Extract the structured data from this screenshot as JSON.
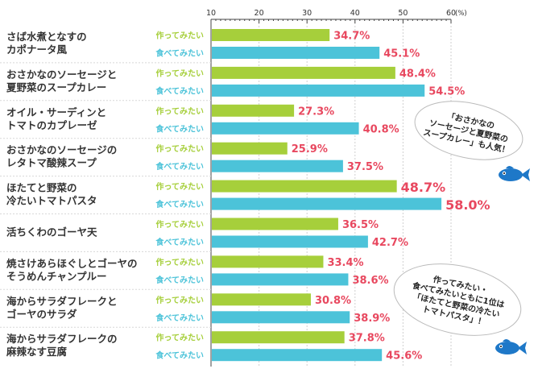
{
  "chart_data": {
    "type": "bar",
    "orientation": "horizontal",
    "xlim": [
      10,
      60
    ],
    "ticks": [
      "10",
      "20",
      "30",
      "40",
      "50",
      "60"
    ],
    "unit": "(%)",
    "series_labels": [
      "作ってみたい",
      "食べてみたい"
    ],
    "series_colors": [
      "#a6cf3b",
      "#4cc3d9"
    ],
    "value_color": "#e8485f",
    "categories": [
      {
        "lines": [
          "さば水煮となすの",
          "カポナータ風"
        ],
        "values": [
          34.7,
          45.1
        ],
        "value_labels": [
          "34.7%",
          "45.1%"
        ]
      },
      {
        "lines": [
          "おさかなのソーセージと",
          "夏野菜のスープカレー"
        ],
        "values": [
          48.4,
          54.5
        ],
        "value_labels": [
          "48.4%",
          "54.5%"
        ]
      },
      {
        "lines": [
          "オイル・サーディンと",
          "トマトのカプレーゼ"
        ],
        "values": [
          27.3,
          40.8
        ],
        "value_labels": [
          "27.3%",
          "40.8%"
        ]
      },
      {
        "lines": [
          "おさかなのソーセージの",
          "レタトマ酸辣スープ"
        ],
        "values": [
          25.9,
          37.5
        ],
        "value_labels": [
          "25.9%",
          "37.5%"
        ]
      },
      {
        "lines": [
          "ほたてと野菜の",
          "冷たいトマトパスタ"
        ],
        "values": [
          48.7,
          58.0
        ],
        "value_labels": [
          "48.7%",
          "58.0%"
        ],
        "highlight": true
      },
      {
        "lines": [
          "活ちくわのゴーヤ天"
        ],
        "values": [
          36.5,
          42.7
        ],
        "value_labels": [
          "36.5%",
          "42.7%"
        ]
      },
      {
        "lines": [
          "焼さけあらほぐしとゴーヤの",
          "そうめんチャンプルー"
        ],
        "values": [
          33.4,
          38.6
        ],
        "value_labels": [
          "33.4%",
          "38.6%"
        ]
      },
      {
        "lines": [
          "海からサラダフレークと",
          "ゴーヤのサラダ"
        ],
        "values": [
          30.8,
          38.9
        ],
        "value_labels": [
          "30.8%",
          "38.9%"
        ]
      },
      {
        "lines": [
          "海からサラダフレークの",
          "麻辣なす豆腐"
        ],
        "values": [
          37.8,
          45.6
        ],
        "value_labels": [
          "37.8%",
          "45.6%"
        ]
      }
    ],
    "annotations": [
      {
        "lines": [
          "「おさかなの",
          "ソーセージと夏野菜の",
          "スープカレー」も人気！"
        ]
      },
      {
        "lines": [
          "作ってみたい・",
          "食べてみたいともに1位は",
          "「ほたてと野菜の冷たい",
          "トマトパスタ」！"
        ]
      }
    ]
  }
}
